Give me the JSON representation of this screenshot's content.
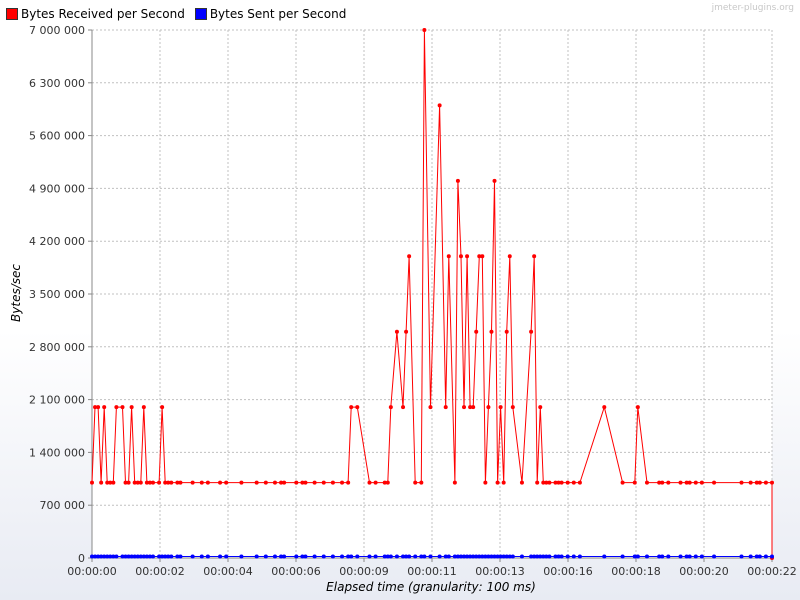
{
  "watermark": "jmeter-plugins.org",
  "legend": [
    {
      "label": "Bytes Received per Second",
      "color": "#ff0000"
    },
    {
      "label": "Bytes Sent per Second",
      "color": "#0000ff"
    }
  ],
  "chart_data": {
    "type": "line",
    "title": "",
    "xlabel": "Elapsed time (granularity: 100 ms)",
    "ylabel": "Bytes/sec",
    "xlim": [
      0,
      22.3
    ],
    "ylim": [
      0,
      7000000
    ],
    "x_tick_labels": [
      "00:00:00",
      "00:00:02",
      "00:00:04",
      "00:00:06",
      "00:00:09",
      "00:00:11",
      "00:00:13",
      "00:00:16",
      "00:00:18",
      "00:00:20",
      "00:00:22"
    ],
    "y_tick_labels": [
      "0",
      "700 000",
      "1 400 000",
      "2 100 000",
      "2 800 000",
      "3 500 000",
      "4 200 000",
      "4 900 000",
      "5 600 000",
      "6 300 000",
      "7 000 000"
    ],
    "grid": true,
    "legend_position": "top-left",
    "series": [
      {
        "name": "Bytes Received per Second",
        "color": "#ff0000",
        "x": [
          0.0,
          0.1,
          0.2,
          0.3,
          0.4,
          0.5,
          0.6,
          0.7,
          0.8,
          1.0,
          1.1,
          1.2,
          1.3,
          1.4,
          1.5,
          1.6,
          1.7,
          1.8,
          1.9,
          2.0,
          2.2,
          2.3,
          2.4,
          2.5,
          2.6,
          2.8,
          2.9,
          3.3,
          3.6,
          3.8,
          4.2,
          4.4,
          4.9,
          5.4,
          5.7,
          6.0,
          6.2,
          6.3,
          6.7,
          6.9,
          7.0,
          7.3,
          7.6,
          7.9,
          8.2,
          8.4,
          8.5,
          8.7,
          9.1,
          9.3,
          9.6,
          9.7,
          9.8,
          10.0,
          10.2,
          10.3,
          10.4,
          10.6,
          10.8,
          10.9,
          11.1,
          11.4,
          11.6,
          11.7,
          11.9,
          12.0,
          12.1,
          12.2,
          12.3,
          12.4,
          12.5,
          12.6,
          12.7,
          12.8,
          12.9,
          13.0,
          13.1,
          13.2,
          13.3,
          13.4,
          13.5,
          13.6,
          13.7,
          13.8,
          14.1,
          14.4,
          14.5,
          14.6,
          14.7,
          14.8,
          14.9,
          15.0,
          15.2,
          15.3,
          15.4,
          15.6,
          15.8,
          16.0,
          16.8,
          17.4,
          17.8,
          17.9,
          18.2,
          18.6,
          18.7,
          18.9,
          19.3,
          19.5,
          19.6,
          19.8,
          20.0,
          20.4,
          21.3,
          21.6,
          21.8,
          21.9,
          22.1,
          22.3,
          22.3
        ],
        "values": [
          1000000,
          2000000,
          2000000,
          1000000,
          2000000,
          1000000,
          1000000,
          1000000,
          2000000,
          2000000,
          1000000,
          1000000,
          2000000,
          1000000,
          1000000,
          1000000,
          2000000,
          1000000,
          1000000,
          1000000,
          1000000,
          2000000,
          1000000,
          1000000,
          1000000,
          1000000,
          1000000,
          1000000,
          1000000,
          1000000,
          1000000,
          1000000,
          1000000,
          1000000,
          1000000,
          1000000,
          1000000,
          1000000,
          1000000,
          1000000,
          1000000,
          1000000,
          1000000,
          1000000,
          1000000,
          1000000,
          2000000,
          2000000,
          1000000,
          1000000,
          1000000,
          1000000,
          2000000,
          3000000,
          2000000,
          3000000,
          4000000,
          1000000,
          1000000,
          7000000,
          2000000,
          6000000,
          2000000,
          4000000,
          1000000,
          5000000,
          4000000,
          2000000,
          4000000,
          2000000,
          2000000,
          3000000,
          4000000,
          4000000,
          1000000,
          2000000,
          3000000,
          5000000,
          1000000,
          2000000,
          1000000,
          3000000,
          4000000,
          2000000,
          1000000,
          3000000,
          4000000,
          1000000,
          2000000,
          1000000,
          1000000,
          1000000,
          1000000,
          1000000,
          1000000,
          1000000,
          1000000,
          1000000,
          2000000,
          1000000,
          1000000,
          2000000,
          1000000,
          1000000,
          1000000,
          1000000,
          1000000,
          1000000,
          1000000,
          1000000,
          1000000,
          1000000,
          1000000,
          1000000,
          1000000,
          1000000,
          1000000,
          1000000,
          0
        ]
      },
      {
        "name": "Bytes Sent per Second",
        "color": "#0000ff",
        "x": [
          0.0,
          0.1,
          0.2,
          0.3,
          0.4,
          0.5,
          0.6,
          0.7,
          0.8,
          1.0,
          1.1,
          1.2,
          1.3,
          1.4,
          1.5,
          1.6,
          1.7,
          1.8,
          1.9,
          2.0,
          2.2,
          2.3,
          2.4,
          2.5,
          2.6,
          2.8,
          2.9,
          3.3,
          3.6,
          3.8,
          4.2,
          4.4,
          4.9,
          5.4,
          5.7,
          6.0,
          6.2,
          6.3,
          6.7,
          6.9,
          7.0,
          7.3,
          7.6,
          7.9,
          8.2,
          8.4,
          8.5,
          8.7,
          9.1,
          9.3,
          9.6,
          9.7,
          9.8,
          10.0,
          10.2,
          10.3,
          10.4,
          10.6,
          10.8,
          10.9,
          11.1,
          11.4,
          11.6,
          11.7,
          11.9,
          12.0,
          12.1,
          12.2,
          12.3,
          12.4,
          12.5,
          12.6,
          12.7,
          12.8,
          12.9,
          13.0,
          13.1,
          13.2,
          13.3,
          13.4,
          13.5,
          13.6,
          13.7,
          13.8,
          14.1,
          14.4,
          14.5,
          14.6,
          14.7,
          14.8,
          14.9,
          15.0,
          15.2,
          15.3,
          15.4,
          15.6,
          15.8,
          16.0,
          16.8,
          17.4,
          17.8,
          17.9,
          18.2,
          18.6,
          18.7,
          18.9,
          19.3,
          19.5,
          19.6,
          19.8,
          20.0,
          20.4,
          21.3,
          21.6,
          21.8,
          21.9,
          22.1,
          22.3
        ],
        "values": [
          20000,
          20000,
          20000,
          20000,
          20000,
          20000,
          20000,
          20000,
          20000,
          20000,
          20000,
          20000,
          20000,
          20000,
          20000,
          20000,
          20000,
          20000,
          20000,
          20000,
          20000,
          20000,
          20000,
          20000,
          20000,
          20000,
          20000,
          20000,
          20000,
          20000,
          20000,
          20000,
          20000,
          20000,
          20000,
          20000,
          20000,
          20000,
          20000,
          20000,
          20000,
          20000,
          20000,
          20000,
          20000,
          20000,
          20000,
          20000,
          20000,
          20000,
          20000,
          20000,
          20000,
          20000,
          20000,
          20000,
          20000,
          20000,
          20000,
          20000,
          20000,
          20000,
          20000,
          20000,
          20000,
          20000,
          20000,
          20000,
          20000,
          20000,
          20000,
          20000,
          20000,
          20000,
          20000,
          20000,
          20000,
          20000,
          20000,
          20000,
          20000,
          20000,
          20000,
          20000,
          20000,
          20000,
          20000,
          20000,
          20000,
          20000,
          20000,
          20000,
          20000,
          20000,
          20000,
          20000,
          20000,
          20000,
          20000,
          20000,
          20000,
          20000,
          20000,
          20000,
          20000,
          20000,
          20000,
          20000,
          20000,
          20000,
          20000,
          20000,
          20000,
          20000,
          20000,
          20000,
          20000,
          20000
        ]
      }
    ]
  }
}
